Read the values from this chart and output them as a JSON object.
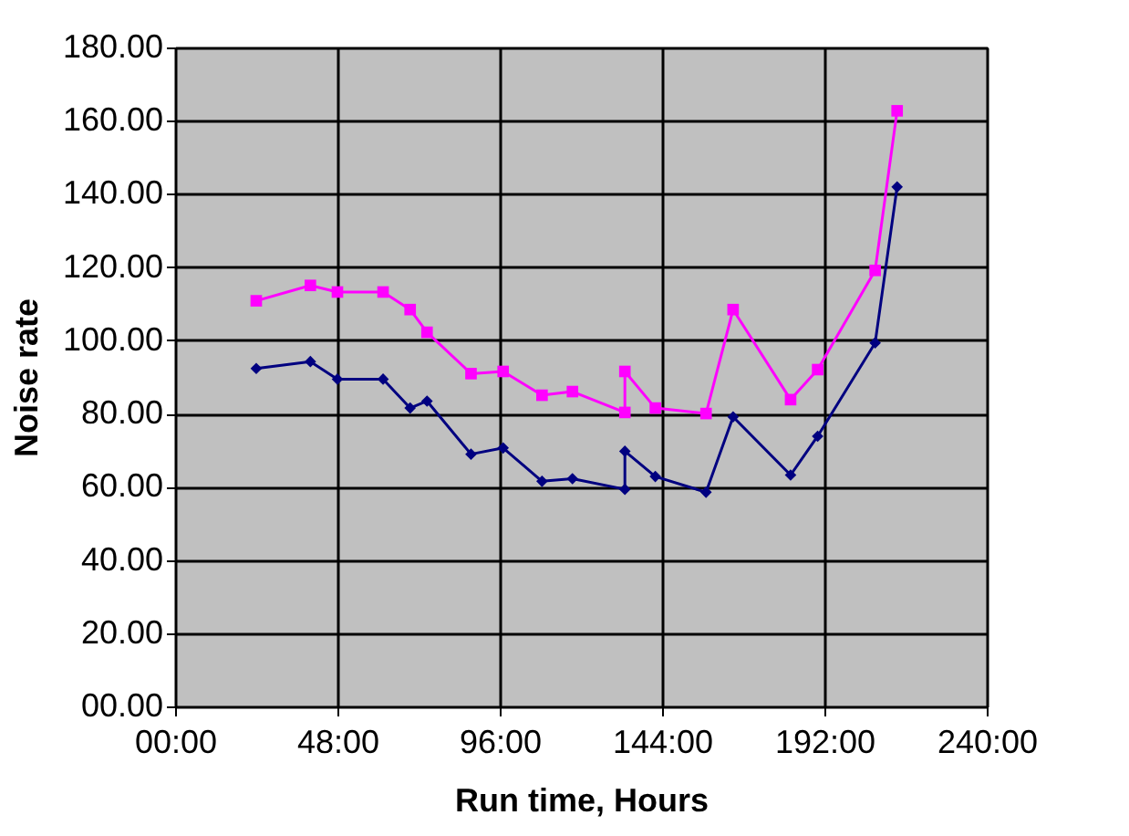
{
  "chart_data": {
    "type": "line",
    "xlabel": "Run time, Hours",
    "ylabel": "Noise rate",
    "x": [
      24,
      40,
      48,
      61.5,
      69.5,
      74.5,
      87.5,
      97,
      108.5,
      117.5,
      133,
      133,
      142,
      157,
      165,
      182,
      190,
      207,
      213.5
    ],
    "series": [
      {
        "color": "#ff00ff",
        "marker": "square",
        "values": [
          110.8,
          115.0,
          113.2,
          113.2,
          108.4,
          102.2,
          90.9,
          91.5,
          85.0,
          86.0,
          80.3,
          91.5,
          81.5,
          80.0,
          108.4,
          83.8,
          92.0,
          119.1,
          162.7
        ]
      },
      {
        "color": "#000080",
        "marker": "diamond",
        "values": [
          92.3,
          94.2,
          89.4,
          89.4,
          81.5,
          83.4,
          68.9,
          70.6,
          61.5,
          62.2,
          59.3,
          69.7,
          62.8,
          58.5,
          79.1,
          63.2,
          73.8,
          99.3,
          141.9
        ]
      }
    ],
    "xlim": [
      0,
      240
    ],
    "xticks": [
      {
        "value": 0,
        "label": "00:00"
      },
      {
        "value": 48,
        "label": "48:00"
      },
      {
        "value": 96,
        "label": "96:00"
      },
      {
        "value": 144,
        "label": "144:00"
      },
      {
        "value": 192,
        "label": "192:00"
      },
      {
        "value": 240,
        "label": "240:00"
      }
    ],
    "ylim": [
      0,
      180
    ],
    "yticks": [
      {
        "value": 0,
        "label": "00.00"
      },
      {
        "value": 20,
        "label": "20.00"
      },
      {
        "value": 40,
        "label": "40.00"
      },
      {
        "value": 60,
        "label": "60.00"
      },
      {
        "value": 80,
        "label": "80.00"
      },
      {
        "value": 100,
        "label": "100.00"
      },
      {
        "value": 120,
        "label": "120.00"
      },
      {
        "value": 140,
        "label": "140.00"
      },
      {
        "value": 160,
        "label": "160.00"
      },
      {
        "value": 180,
        "label": "180.00"
      }
    ],
    "grid": true,
    "legend": false,
    "line_style": "solid"
  }
}
